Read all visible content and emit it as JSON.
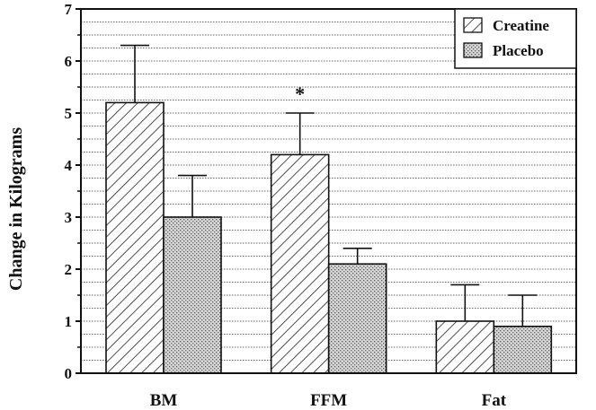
{
  "chart_data": {
    "type": "bar",
    "ylabel": "Change in Kilograms",
    "xlabel": "",
    "ylim": [
      0,
      7
    ],
    "yticks": [
      "0",
      "1",
      "2",
      "3",
      "4",
      "5",
      "6",
      "7"
    ],
    "categories": [
      "BM",
      "FFM",
      "Fat"
    ],
    "series": [
      {
        "name": "Creatine",
        "values": [
          5.2,
          4.2,
          1.0
        ],
        "errors": [
          1.1,
          0.8,
          0.7
        ],
        "pattern": "diagonal-hatch"
      },
      {
        "name": "Placebo",
        "values": [
          3.0,
          2.1,
          0.9
        ],
        "errors": [
          0.8,
          0.3,
          0.6
        ],
        "pattern": "stipple"
      }
    ],
    "annotations": [
      {
        "text": "*",
        "category": "FFM",
        "series": "Creatine"
      }
    ],
    "grid": "horizontal dotted",
    "legend": "top-right",
    "colors": {
      "line": "#111111",
      "stipple_bg": "#d6d6d6",
      "stipple_dot": "#555555"
    }
  }
}
